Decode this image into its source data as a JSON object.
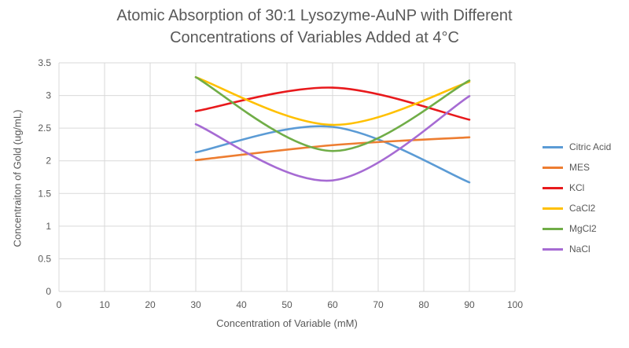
{
  "chart_data": {
    "type": "line",
    "title_line1": "Atomic Absorption of 30:1 Lysozyme-AuNP with Different",
    "title_line2": "Concentrations of Variables Added at 4°C",
    "xlabel": "Concentration of Variable (mM)",
    "ylabel": "Concentraiton of Gold (ug/mL)",
    "xlim": [
      0,
      100
    ],
    "ylim": [
      0,
      3.5
    ],
    "x_ticks": [
      "0",
      "10",
      "20",
      "30",
      "40",
      "50",
      "60",
      "70",
      "80",
      "90",
      "100"
    ],
    "y_ticks": [
      "0",
      "0.5",
      "1",
      "1.5",
      "2",
      "2.5",
      "3",
      "3.5"
    ],
    "grid": true,
    "legend_position": "right",
    "x": [
      30,
      60,
      90
    ],
    "series": [
      {
        "name": "Citric Acid",
        "color": "#5B9BD5",
        "values": [
          2.13,
          2.52,
          1.67
        ]
      },
      {
        "name": "MES",
        "color": "#ED7D31",
        "values": [
          2.01,
          2.24,
          2.36
        ]
      },
      {
        "name": "KCl",
        "color": "#E8191C",
        "values": [
          2.76,
          3.12,
          2.63
        ]
      },
      {
        "name": "CaCl2",
        "color": "#FFC000",
        "values": [
          3.28,
          2.55,
          3.21
        ]
      },
      {
        "name": "MgCl2",
        "color": "#70AD47",
        "values": [
          3.28,
          2.15,
          3.23
        ]
      },
      {
        "name": "NaCl",
        "color": "#A66BD3",
        "values": [
          2.56,
          1.7,
          2.99
        ]
      }
    ]
  }
}
